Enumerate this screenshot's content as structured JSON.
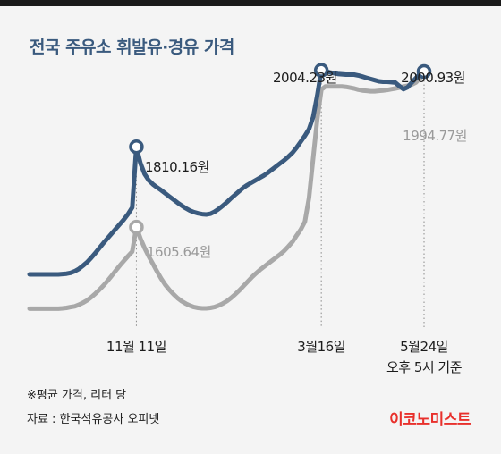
{
  "header": {
    "title": "전국 주유소 휘발유·경유 가격"
  },
  "notes": {
    "unit": "※평균 가격, 리터 당",
    "source": "자료 :  한국석유공사 오피넷"
  },
  "brand": {
    "logo_text": "이코노미스트"
  },
  "colors": {
    "background": "#f4f4f4",
    "gasoline": "#3a5a7e",
    "diesel": "#a8a8a8",
    "label_dark": "#1c1c1c",
    "label_gray": "#9a9a9a",
    "logo": "#e8302c"
  },
  "chart_data": {
    "type": "line",
    "title": "전국 주유소 휘발유·경유 가격",
    "xlabel": "",
    "ylabel": "",
    "grid": false,
    "legend": "none",
    "ylim": [
      1350,
      2060
    ],
    "x_ticks": [
      {
        "label": "11월 11일",
        "index": 26
      },
      {
        "label": "3월16일",
        "index": 71
      },
      {
        "label": "5월24일",
        "sublabel": "오후 5시 기준",
        "index": 96
      }
    ],
    "series": [
      {
        "values": [
          1486,
          1486,
          1486,
          1486,
          1486,
          1486,
          1486,
          1486,
          1487,
          1488,
          1490,
          1494,
          1500,
          1508,
          1517,
          1528,
          1540,
          1553,
          1566,
          1578,
          1590,
          1602,
          1614,
          1626,
          1640,
          1656,
          1810,
          1768,
          1741,
          1725,
          1715,
          1707,
          1700,
          1692,
          1684,
          1676,
          1668,
          1661,
          1654,
          1648,
          1644,
          1641,
          1639,
          1638,
          1640,
          1645,
          1652,
          1660,
          1669,
          1679,
          1688,
          1697,
          1706,
          1713,
          1719,
          1725,
          1731,
          1737,
          1744,
          1752,
          1760,
          1768,
          1776,
          1785,
          1795,
          1808,
          1823,
          1838,
          1855,
          1885,
          1940,
          2004,
          2002,
          1999,
          1997,
          1995,
          1994,
          1993,
          1993,
          1993,
          1991,
          1988,
          1985,
          1982,
          1979,
          1976,
          1975,
          1975,
          1974,
          1973,
          1964,
          1956,
          1961,
          1973,
          1984,
          1995,
          2001
        ],
        "labels": [
          {
            "index": 26,
            "text": "1810.16원"
          },
          {
            "index": 71,
            "text": "2004.23원"
          },
          {
            "index": 96,
            "text": "2000.93원"
          }
        ]
      },
      {
        "values": [
          1399,
          1399,
          1399,
          1399,
          1399,
          1399,
          1399,
          1399,
          1400,
          1401,
          1403,
          1405,
          1409,
          1414,
          1420,
          1428,
          1437,
          1447,
          1458,
          1470,
          1483,
          1496,
          1509,
          1521,
          1533,
          1544,
          1606,
          1577,
          1553,
          1532,
          1513,
          1494,
          1476,
          1460,
          1447,
          1436,
          1426,
          1418,
          1412,
          1407,
          1403,
          1401,
          1400,
          1400,
          1401,
          1403,
          1407,
          1412,
          1418,
          1426,
          1435,
          1445,
          1456,
          1467,
          1478,
          1488,
          1497,
          1505,
          1513,
          1521,
          1529,
          1537,
          1546,
          1557,
          1569,
          1585,
          1600,
          1620,
          1680,
          1780,
          1880,
          1955,
          1963,
          1963,
          1963,
          1963,
          1963,
          1962,
          1960,
          1958,
          1955,
          1953,
          1952,
          1951,
          1951,
          1952,
          1953,
          1954,
          1956,
          1958,
          1960,
          1963,
          1965,
          1968,
          1973,
          1984,
          1995
        ],
        "labels": [
          {
            "index": 26,
            "text": "1605.64원"
          },
          {
            "index": 96,
            "text": "1994.77원"
          }
        ]
      }
    ]
  }
}
